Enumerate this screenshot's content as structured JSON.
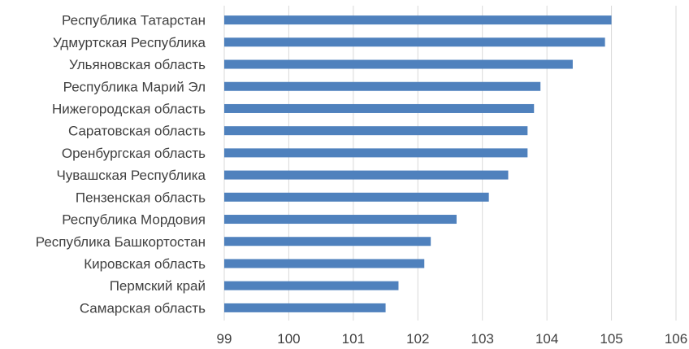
{
  "chart_data": {
    "type": "bar",
    "orientation": "horizontal",
    "title": "",
    "xlabel": "",
    "ylabel": "",
    "categories": [
      "Республика Татарстан",
      "Удмуртская Республика",
      "Ульяновская область",
      "Республика Марий Эл",
      "Нижегородская область",
      "Саратовская область",
      "Оренбургская область",
      "Чувашская Республика",
      "Пензенская область",
      "Республика Мордовия",
      "Республика Башкортостан",
      "Кировская область",
      "Пермский край",
      "Самарская область"
    ],
    "values": [
      105.0,
      104.9,
      104.4,
      103.9,
      103.8,
      103.7,
      103.7,
      103.4,
      103.1,
      102.6,
      102.2,
      102.1,
      101.7,
      101.5
    ],
    "xlim": [
      99,
      106
    ],
    "ticks": [
      "99",
      "100",
      "101",
      "102",
      "103",
      "104",
      "105",
      "106"
    ],
    "grid": "vertical",
    "legend": "none",
    "colors": {
      "bar": "#4f81bd",
      "grid": "#d9d9d9",
      "text": "#404040"
    }
  }
}
